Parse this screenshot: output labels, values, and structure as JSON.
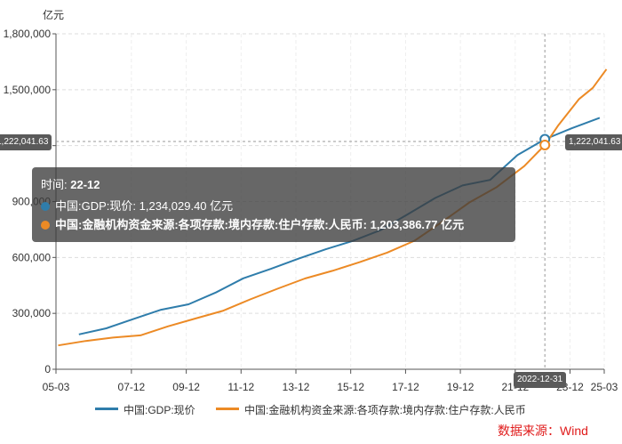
{
  "chart_data": {
    "type": "line",
    "y_unit": "亿元",
    "y_ticks": [
      "0",
      "300,000",
      "600,000",
      "900,000",
      "1,200,000",
      "1,500,000",
      "1,800,000"
    ],
    "ylim": [
      0,
      1800000
    ],
    "x_ticks": [
      "05-03",
      "07-12",
      "09-12",
      "11-12",
      "13-12",
      "15-12",
      "17-12",
      "19-12",
      "21-12",
      "23-12",
      "25-03"
    ],
    "grid": true,
    "legend_position": "bottom",
    "series": [
      {
        "name": "中国:GDP:现价",
        "color": "#2f7dab",
        "points": [
          [
            "2005-12-31",
            187319
          ],
          [
            "2006-12-31",
            219439
          ],
          [
            "2007-12-31",
            270092
          ],
          [
            "2008-12-31",
            319245
          ],
          [
            "2009-12-31",
            348518
          ],
          [
            "2010-12-31",
            412119
          ],
          [
            "2011-12-31",
            487940
          ],
          [
            "2012-12-31",
            538580
          ],
          [
            "2013-12-31",
            592963
          ],
          [
            "2014-12-31",
            643563
          ],
          [
            "2015-12-31",
            688858
          ],
          [
            "2016-12-31",
            746395
          ],
          [
            "2017-12-31",
            832036
          ],
          [
            "2018-12-31",
            919281
          ],
          [
            "2019-12-31",
            986515
          ],
          [
            "2020-12-31",
            1015986
          ],
          [
            "2021-12-31",
            1149237
          ],
          [
            "2022-12-31",
            1234029
          ],
          [
            "2023-12-31",
            1294272
          ],
          [
            "2024-12-31",
            1349084
          ]
        ]
      },
      {
        "name": "中国:金融机构资金来源:各项存款:境内存款:住户存款:人民币",
        "color": "#ec8a25",
        "points": [
          [
            "2005-03-31",
            128000
          ],
          [
            "2006-03-31",
            152000
          ],
          [
            "2007-03-31",
            170000
          ],
          [
            "2008-03-31",
            182000
          ],
          [
            "2009-03-31",
            230000
          ],
          [
            "2010-03-31",
            272000
          ],
          [
            "2011-03-31",
            313000
          ],
          [
            "2012-03-31",
            375000
          ],
          [
            "2013-03-31",
            432000
          ],
          [
            "2014-03-31",
            487000
          ],
          [
            "2015-03-31",
            528000
          ],
          [
            "2016-03-31",
            575000
          ],
          [
            "2017-03-31",
            626000
          ],
          [
            "2018-03-31",
            690000
          ],
          [
            "2019-03-31",
            790000
          ],
          [
            "2020-03-31",
            895000
          ],
          [
            "2021-03-31",
            978000
          ],
          [
            "2022-03-31",
            1090000
          ],
          [
            "2022-12-31",
            1203387
          ],
          [
            "2023-06-30",
            1310000
          ],
          [
            "2024-03-31",
            1450000
          ],
          [
            "2024-09-30",
            1510000
          ],
          [
            "2025-03-31",
            1610000
          ]
        ]
      }
    ],
    "crosshair": {
      "x": "2022-12-31",
      "x_label": "2022-12-31",
      "y_label_left": "1,222,041.63",
      "y_label_right": "1,222,041.63",
      "y_value": 1222041.63
    },
    "tooltip": {
      "title_prefix": "时间: ",
      "title_value": "22-12",
      "rows": [
        "中国:GDP:现价: 1,234,029.40  亿元",
        "中国:金融机构资金来源:各项存款:境内存款:住户存款:人民币: 1,203,386.77  亿元"
      ]
    }
  },
  "source_text": "数据来源：Wind"
}
